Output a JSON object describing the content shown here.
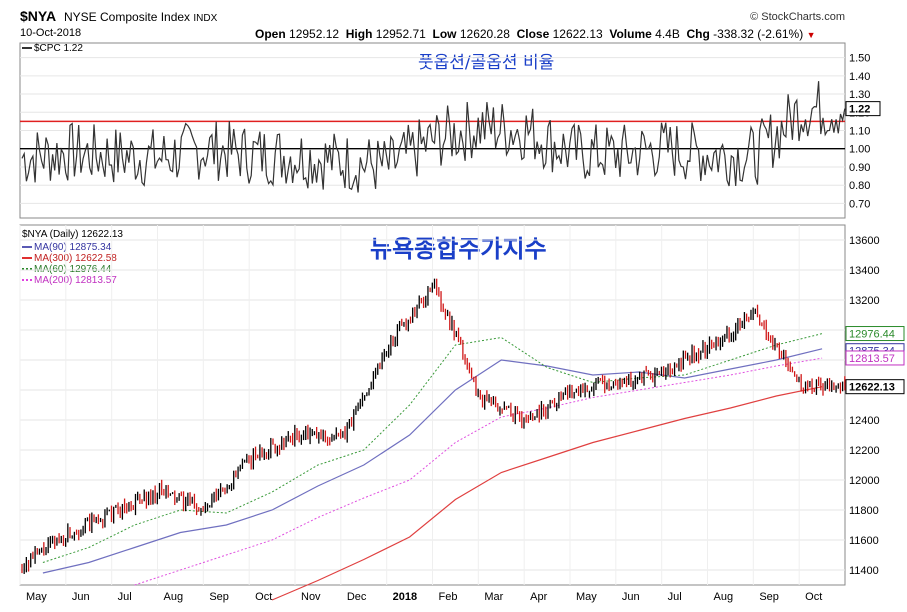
{
  "header": {
    "symbol": "$NYA",
    "name": "NYSE Composite Index",
    "exchange": "INDX",
    "date": "10-Oct-2018",
    "source": "© StockCharts.com",
    "open_label": "Open",
    "open": "12952.12",
    "high_label": "High",
    "high": "12952.71",
    "low_label": "Low",
    "low": "12620.28",
    "close_label": "Close",
    "close": "12622.13",
    "volume_label": "Volume",
    "volume": "4.4B",
    "chg_label": "Chg",
    "chg": "-338.32 (-2.61%)"
  },
  "cpc_panel": {
    "legend": "$CPC 1.22",
    "annotation": "풋옵션/콜옵션 비율",
    "last_value": "1.22"
  },
  "price_panel": {
    "legend_title": "$NYA (Daily) 12622.13",
    "annotation": "뉴욕종합주가지수",
    "ma": [
      {
        "label": "MA(90) 12875.34",
        "color": "#5a5ab4"
      },
      {
        "label": "MA(300) 12622.58",
        "color": "#e03030"
      },
      {
        "label": "MA(60) 12976.44",
        "color": "#2a8a2a"
      },
      {
        "label": "MA(200) 12813.57",
        "color": "#e040e0"
      }
    ],
    "value_tags": [
      {
        "text": "12976.44",
        "value": 12976.44,
        "color": "#2a8a2a",
        "bold": false
      },
      {
        "text": "12875.34",
        "value": 12875.34,
        "color": "#3434a0",
        "bold": false
      },
      {
        "text": "12813.57",
        "value": 12813.57,
        "color": "#c030c0",
        "bold": false
      },
      {
        "text": "12622.13",
        "value": 12622.13,
        "color": "#000000",
        "bold": true
      }
    ]
  },
  "x_labels": [
    "May",
    "Jun",
    "Jul",
    "Aug",
    "Sep",
    "Oct",
    "Nov",
    "Dec",
    "2018",
    "Feb",
    "Mar",
    "Apr",
    "May",
    "Jun",
    "Jul",
    "Aug",
    "Sep",
    "Oct"
  ],
  "chart_data": [
    {
      "type": "line",
      "title": "$CPC",
      "ylim": [
        0.62,
        1.58
      ],
      "y_ticks": [
        "1.50",
        "1.40",
        "1.30",
        "1.20",
        "1.10",
        "1.00",
        "0.90",
        "0.80",
        "0.70"
      ],
      "reference_lines": [
        {
          "value": 1.15,
          "color": "#e02020"
        },
        {
          "value": 1.0,
          "color": "#000000"
        }
      ],
      "series": [
        {
          "x": [
            "May",
            "Jun",
            "Jul",
            "Aug",
            "Sep",
            "Oct",
            "Nov",
            "Dec",
            "2018",
            "Feb",
            "Mar",
            "Apr",
            "May",
            "Jun",
            "Jul",
            "Aug",
            "Sep",
            "Oct"
          ],
          "values": [
            0.95,
            0.98,
            0.96,
            0.95,
            1.0,
            0.97,
            0.96,
            0.93,
            0.9,
            1.05,
            1.12,
            1.1,
            0.98,
            0.97,
            1.0,
            0.97,
            0.96,
            1.22
          ]
        }
      ]
    },
    {
      "type": "line",
      "title": "$NYA (Daily)",
      "ylim": [
        11300,
        13700
      ],
      "y_ticks": [
        "13600",
        "13400",
        "13200",
        "13000",
        "12800",
        "12600",
        "12400",
        "12200",
        "12000",
        "11800",
        "11600",
        "11400"
      ],
      "categories": [
        "May",
        "Jun",
        "Jul",
        "Aug",
        "Sep",
        "Oct",
        "Nov",
        "Dec",
        "2018",
        "Feb",
        "Mar",
        "Apr",
        "May",
        "Jun",
        "Jul",
        "Aug",
        "Sep",
        "Oct"
      ],
      "series": [
        {
          "name": "$NYA",
          "values": [
            11430,
            11640,
            11780,
            11920,
            11800,
            12150,
            12300,
            12280,
            12900,
            13300,
            12550,
            12400,
            12600,
            12650,
            12700,
            12900,
            13100,
            12622
          ]
        },
        {
          "name": "MA(90)",
          "values": [
            11380,
            11450,
            11550,
            11650,
            11700,
            11800,
            11960,
            12100,
            12300,
            12600,
            12800,
            12760,
            12700,
            12720,
            12680,
            12740,
            12800,
            12875
          ]
        },
        {
          "name": "MA(300)",
          "values": [
            null,
            null,
            null,
            null,
            null,
            11200,
            11330,
            11470,
            11620,
            11870,
            12050,
            12150,
            12250,
            12330,
            12410,
            12480,
            12560,
            12622
          ]
        },
        {
          "name": "MA(60)",
          "values": [
            11450,
            11550,
            11700,
            11800,
            11780,
            11920,
            12100,
            12200,
            12500,
            12900,
            12950,
            12750,
            12650,
            12680,
            12700,
            12800,
            12900,
            12976
          ]
        },
        {
          "name": "MA(200)",
          "values": [
            null,
            null,
            11300,
            11400,
            11500,
            11600,
            11750,
            11880,
            12000,
            12250,
            12420,
            12480,
            12550,
            12600,
            12650,
            12700,
            12760,
            12813
          ]
        }
      ]
    }
  ]
}
